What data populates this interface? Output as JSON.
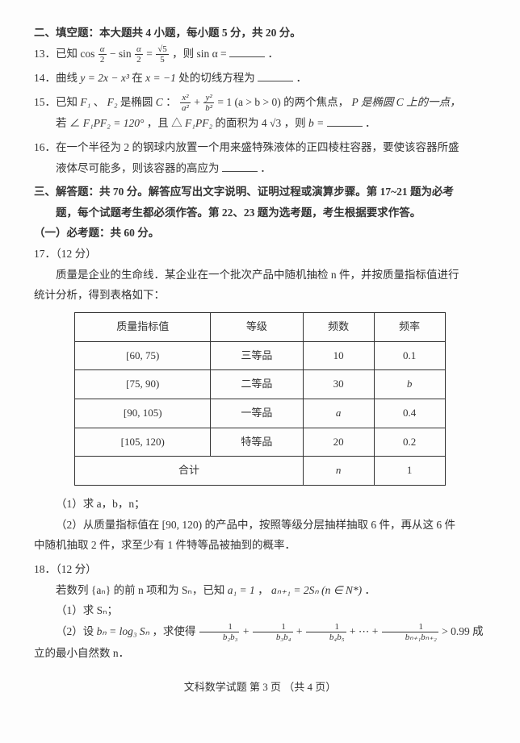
{
  "section2": {
    "heading": "二、填空题：本大题共 4 小题，每小题 5 分，共 20 分。"
  },
  "q13": {
    "prefix": "13．已知 ",
    "eq_lhs_a": "cos",
    "eq_lhs_b": "− sin",
    "frac_a_num": "α",
    "frac_a_den": "2",
    "eq_mid": " = ",
    "rhs_num": "√5",
    "rhs_den": "5",
    "after": "，则 sin α = ",
    "end": "．"
  },
  "q14": {
    "prefix": "14．曲线 ",
    "eq": "y = 2x − x³",
    "at": " 在 ",
    "xval": "x = −1",
    "rest": " 处的切线方程为 ",
    "end": "．"
  },
  "q15": {
    "line1a": "15．已知 ",
    "f1": "F₁",
    "sep1": "、",
    "f2": "F₂",
    "mid1": " 是椭圆 ",
    "Cname": "C",
    "colon": "：",
    "frac1_num": "x²",
    "frac1_den": "a²",
    "plus": " + ",
    "frac2_num": "y²",
    "frac2_den": "b²",
    "eq1": " = 1 (a > b > 0)",
    "rest1": " 的两个焦点，",
    "Pmid": "P 是椭圆 C 上的一点，",
    "line2a": "若 ∠",
    "angle": "F₁PF₂ = 120°",
    "mid2": "，且 △",
    "tri": "F₁PF₂",
    "area_pre": " 的面积为 4",
    "area_sqrt": "√3",
    "then": " ，则 ",
    "bvar": "b = ",
    "end": "．"
  },
  "q16": {
    "line1": "16．在一个半径为 2 的钢球内放置一个用来盛特殊液体的正四棱柱容器，要使该容器所盛",
    "line2": "液体尽可能多，则该容器的高应为",
    "end": "．"
  },
  "section3": {
    "line1": "三、解答题：共 70 分。解答应写出文字说明、证明过程或演算步骤。第 17~21 题为必考",
    "line2": "题，每个试题考生都必须作答。第 22、23 题为选考题，考生根据要求作答。",
    "sub": "（一）必考题：共 60 分。"
  },
  "q17": {
    "num": "17．（12 分）",
    "p1": "质量是企业的生命线．某企业在一个批次产品中随机抽检 n 件，并按质量指标值进行",
    "p2": "统计分析，得到表格如下：",
    "table": {
      "headers": [
        "质量指标值",
        "等级",
        "频数",
        "频率"
      ],
      "rows": [
        [
          "[60, 75)",
          "三等品",
          "10",
          "0.1"
        ],
        [
          "[75, 90)",
          "二等品",
          "30",
          "b"
        ],
        [
          "[90, 105)",
          "一等品",
          "a",
          "0.4"
        ],
        [
          "[105, 120)",
          "特等品",
          "20",
          "0.2"
        ]
      ],
      "total_label": "合计",
      "total_n": "n",
      "total_f": "1"
    },
    "sub1": "（1）求 a，b，n；",
    "sub2a": "（2）从质量指标值在 [90, 120) 的产品中，按照等级分层抽样抽取 6 件，再从这 6 件",
    "sub2b": "中随机抽取 2 件，求至少有 1 件特等品被抽到的概率．"
  },
  "q18": {
    "num": "18．（12 分）",
    "p1a": "若数列 {aₙ} 的前 n 项和为 Sₙ，已知 ",
    "a1": "a₁ = 1",
    "sep": "，",
    "rec": "aₙ₊₁ = 2Sₙ (n ∈ N*)",
    "end1": "．",
    "sub1": "（1）求 Sₙ；",
    "sub2a": "（2）设 ",
    "bn": "bₙ = log₃ Sₙ",
    "sub2b": "，求使得 ",
    "series_1_num": "1",
    "series_1_den_a": "b₂b₃",
    "series_2_den": "b₃b₄",
    "series_3_den": "b₄b₅",
    "series_k_den": "bₙ₊₁bₙ₊₂",
    "gt": " > 0.99",
    "tail": " 成立的最小自然数 n．"
  },
  "footer": "文科数学试题  第 3 页 （共 4 页）",
  "style": {
    "page_bg": "#fdfdfd",
    "text_color": "#333333",
    "font_size_pt": 13.5,
    "table_border_color": "#333333"
  }
}
